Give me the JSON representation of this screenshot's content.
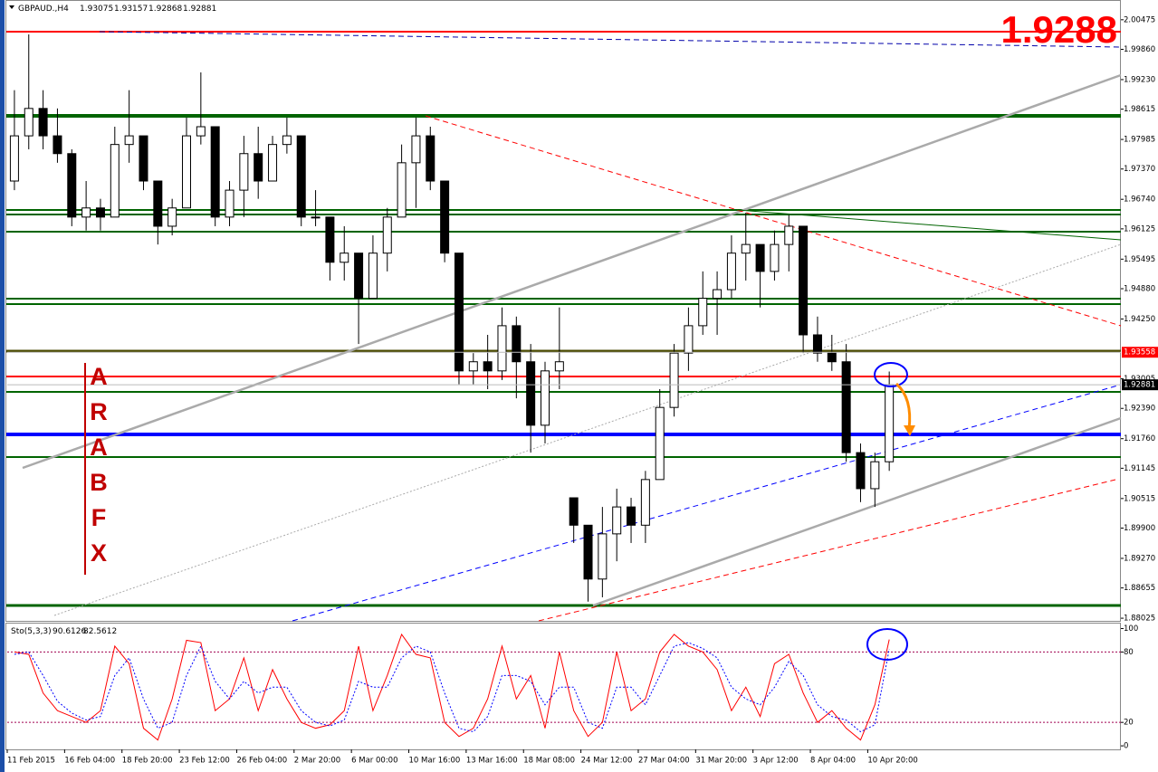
{
  "chart_data": [
    {
      "type": "candlestick",
      "symbol": "GBPAUD.,H4",
      "last_bar": [
        1.93075,
        1.93157,
        1.92868,
        1.92881
      ],
      "annotation": "1.9288",
      "watermark": "ARABFX",
      "categories": [
        "11 Feb 2015",
        null,
        null,
        null,
        "16 Feb 04:00",
        null,
        null,
        null,
        "18 Feb 20:00",
        null,
        null,
        null,
        "23 Feb 12:00",
        null,
        null,
        null,
        "26 Feb 04:00",
        null,
        null,
        null,
        "2 Mar 20:00",
        null,
        null,
        null,
        "6 Mar 00:00",
        null,
        null,
        null,
        "10 Mar 16:00",
        null,
        null,
        null,
        "13 Mar 16:00",
        null,
        null,
        null,
        "18 Mar 08:00",
        null,
        null,
        null,
        "24 Mar 12:00",
        null,
        null,
        null,
        "27 Mar 04:00",
        null,
        null,
        null,
        "31 Mar 20:00",
        null,
        null,
        null,
        "3 Apr 12:00",
        null,
        null,
        null,
        "8 Apr 04:00",
        null,
        null,
        null,
        "10 Apr 20:00",
        null
      ],
      "open": [
        1.9712,
        1.9806,
        1.9863,
        1.9806,
        1.9769,
        1.9637,
        1.9656,
        1.9637,
        1.9788,
        1.9806,
        1.9712,
        1.9618,
        1.9656,
        1.9806,
        1.9825,
        1.9637,
        1.9693,
        1.9769,
        1.9712,
        1.9788,
        1.9806,
        1.9637,
        1.9637,
        1.9543,
        1.9562,
        1.9468,
        1.9562,
        1.9637,
        1.975,
        1.9806,
        1.9712,
        1.9562,
        1.9317,
        1.9336,
        1.9317,
        1.9411,
        1.9336,
        1.9204,
        1.9317,
        1.9053,
        1.8996,
        1.8884,
        1.8978,
        1.9034,
        1.8996,
        1.9091,
        1.9241,
        1.9354,
        1.9411,
        1.9468,
        1.9486,
        1.9562,
        1.958,
        1.9524,
        1.958,
        1.9618,
        1.9392,
        1.9354,
        1.9336,
        1.9147,
        1.9072,
        1.9128
      ],
      "high": [
        1.9901,
        2.0017,
        1.9901,
        1.9863,
        1.9778,
        1.9712,
        1.9675,
        1.9825,
        1.9901,
        1.9806,
        1.9712,
        1.9675,
        1.9844,
        1.9938,
        1.9825,
        1.9712,
        1.9806,
        1.9825,
        1.9806,
        1.9844,
        1.9806,
        1.9693,
        1.9637,
        1.9618,
        1.9562,
        1.9599,
        1.9656,
        1.9788,
        1.9844,
        1.9825,
        1.9712,
        1.9562,
        1.9354,
        1.9392,
        1.9449,
        1.943,
        1.9373,
        1.9336,
        1.9449,
        1.9053,
        1.8996,
        1.9034,
        1.9072,
        1.9053,
        1.9109,
        1.9279,
        1.9373,
        1.9449,
        1.9524,
        1.9524,
        1.9599,
        1.9646,
        1.958,
        1.9609,
        1.9641,
        1.9618,
        1.943,
        1.9392,
        1.9373,
        1.9166,
        1.9147,
        1.93157
      ],
      "low": [
        1.9693,
        1.9778,
        1.9778,
        1.975,
        1.9618,
        1.9609,
        1.9609,
        1.9637,
        1.975,
        1.9693,
        1.958,
        1.9599,
        1.9656,
        1.9788,
        1.9618,
        1.9618,
        1.9637,
        1.9675,
        1.9712,
        1.9769,
        1.9618,
        1.9618,
        1.9505,
        1.9505,
        1.9373,
        1.9468,
        1.9524,
        1.9637,
        1.9656,
        1.9693,
        1.9543,
        1.9289,
        1.9289,
        1.9279,
        1.9298,
        1.926,
        1.9147,
        1.9166,
        1.9279,
        1.8959,
        1.8837,
        1.8846,
        1.8921,
        1.8959,
        1.8959,
        1.9091,
        1.9222,
        1.9317,
        1.9392,
        1.9392,
        1.9468,
        1.9505,
        1.9449,
        1.9505,
        1.9524,
        1.9354,
        1.9336,
        1.9317,
        1.9128,
        1.9044,
        1.9034,
        1.9109
      ],
      "close": [
        1.9806,
        1.9863,
        1.9806,
        1.9769,
        1.9637,
        1.9656,
        1.9637,
        1.9788,
        1.9806,
        1.9712,
        1.9618,
        1.9656,
        1.9806,
        1.9825,
        1.9637,
        1.9693,
        1.9769,
        1.9712,
        1.9788,
        1.9806,
        1.9637,
        1.9637,
        1.9543,
        1.9562,
        1.9468,
        1.9562,
        1.9637,
        1.975,
        1.9806,
        1.9712,
        1.9562,
        1.9317,
        1.9336,
        1.9317,
        1.9411,
        1.9336,
        1.9204,
        1.9317,
        1.9336,
        1.8996,
        1.8884,
        1.8978,
        1.9034,
        1.8996,
        1.9091,
        1.9241,
        1.9354,
        1.9411,
        1.9468,
        1.9486,
        1.9562,
        1.958,
        1.9524,
        1.958,
        1.9618,
        1.9392,
        1.9354,
        1.9336,
        1.9147,
        1.9072,
        1.9128,
        1.92881
      ],
      "up_color": "#ffffff",
      "down_color": "#000000",
      "ylim": [
        1.8797,
        2.0066
      ],
      "yticks": [
        2.00475,
        {
          "value": 1.9986,
          "label": "1.99860"
        },
        {
          "value": 1.9923,
          "label": "1.99230"
        },
        1.98615,
        1.97985,
        {
          "value": 1.9737,
          "label": "1.97370"
        },
        {
          "value": 1.9674,
          "label": "1.96740"
        },
        1.96125,
        1.95495,
        {
          "value": 1.9488,
          "label": "1.94880"
        },
        {
          "value": 1.9425,
          "label": "1.94250"
        },
        1.93005,
        {
          "value": 1.9239,
          "label": "1.92390"
        },
        {
          "value": 1.9176,
          "label": "1.91760"
        },
        1.91145,
        1.90515,
        {
          "value": 1.899,
          "label": "1.89900"
        },
        {
          "value": 1.8927,
          "label": "1.89270"
        },
        1.88655,
        1.88025
      ],
      "price_tags": [
        {
          "value": 1.93558,
          "color": "#ff0000"
        },
        {
          "value": 1.92881,
          "color": "#000000"
        }
      ]
    },
    {
      "type": "line",
      "title": "Sto(5,3,3)",
      "series": [
        {
          "color": "#ff0000",
          "values": [
            80,
            78,
            45,
            30,
            25,
            20,
            30,
            85,
            70,
            15,
            5,
            40,
            90,
            88,
            30,
            40,
            75,
            30,
            65,
            40,
            20,
            15,
            18,
            30,
            85,
            30,
            60,
            95,
            78,
            75,
            20,
            8,
            15,
            40,
            85,
            40,
            60,
            15,
            80,
            30,
            8,
            20,
            80,
            30,
            40,
            80,
            95,
            85,
            80,
            65,
            30,
            50,
            25,
            70,
            78,
            45,
            20,
            30,
            15,
            5,
            35,
            90.6126
          ]
        },
        {
          "color": "#0000ff",
          "values": [
            78,
            80,
            60,
            38,
            28,
            22,
            25,
            60,
            75,
            40,
            15,
            20,
            60,
            85,
            55,
            40,
            55,
            45,
            50,
            50,
            30,
            20,
            17,
            22,
            55,
            50,
            50,
            75,
            85,
            80,
            45,
            15,
            12,
            25,
            60,
            60,
            55,
            35,
            50,
            50,
            20,
            15,
            50,
            50,
            35,
            60,
            85,
            88,
            83,
            75,
            50,
            40,
            35,
            50,
            72,
            60,
            35,
            25,
            22,
            12,
            18,
            82.5612
          ]
        }
      ],
      "ylim": [
        -3,
        105
      ],
      "yticks": [
        100,
        80,
        20,
        0
      ],
      "levels": [
        80,
        20
      ]
    }
  ]
}
